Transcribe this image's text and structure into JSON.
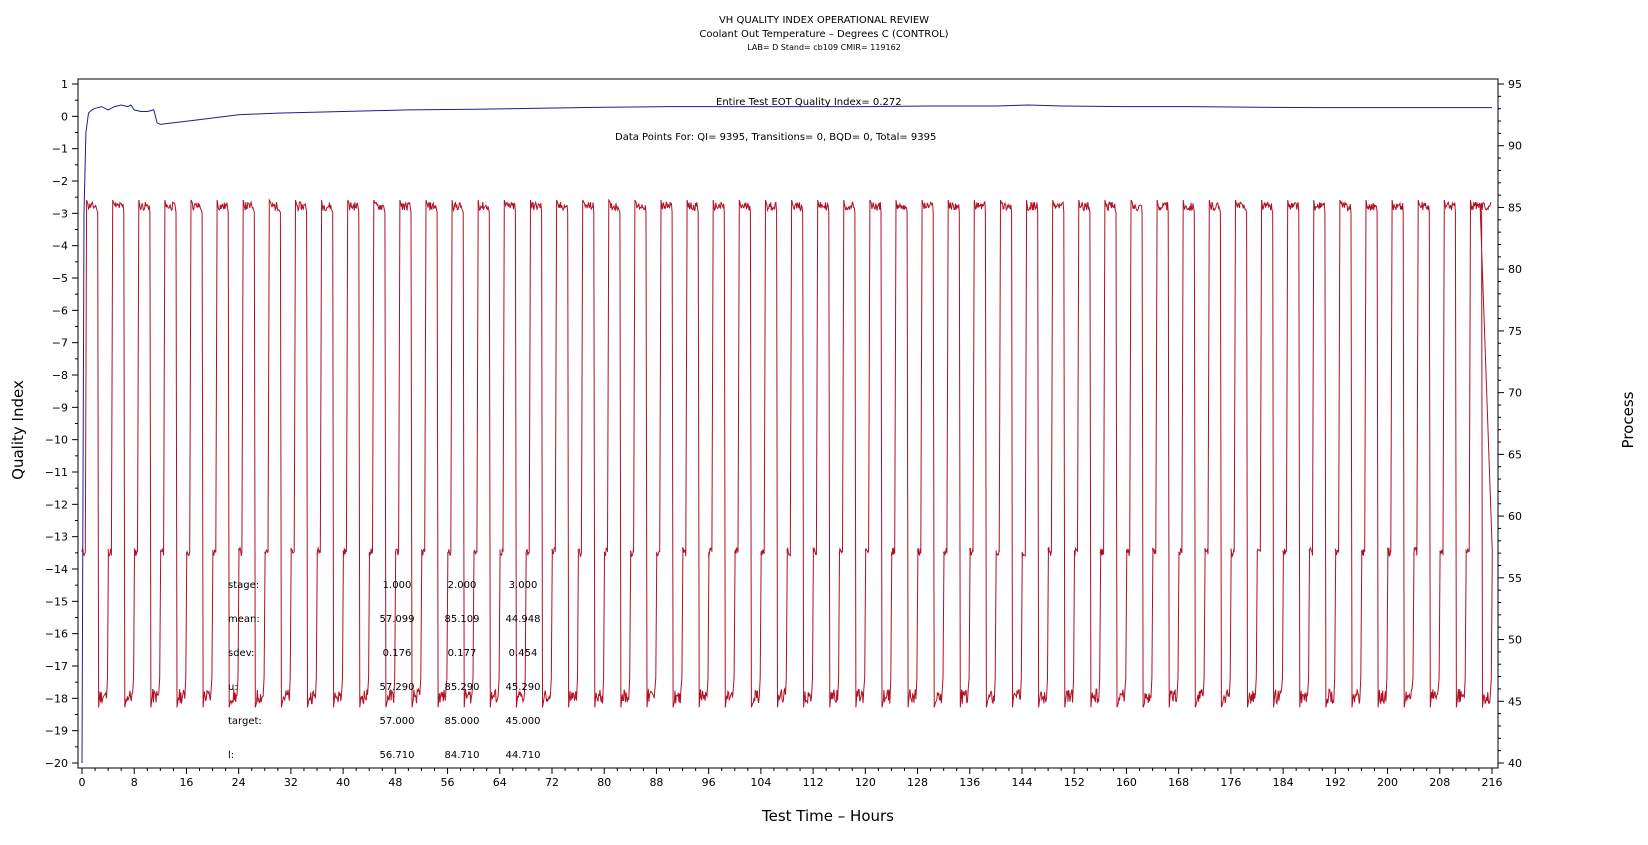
{
  "chart_data": {
    "type": "line",
    "title": "VH QUALITY INDEX OPERATIONAL REVIEW",
    "subtitle": "Coolant Out Temperature – Degrees C (CONTROL)",
    "subtitle2": "LAB= D Stand= cb109 CMIR= 119162",
    "xlabel": "Test Time – Hours",
    "ylabel_left": "Quality Index",
    "ylabel_right": "Process",
    "xlim": [
      0,
      216
    ],
    "ylim_left": [
      -20,
      1
    ],
    "ylim_right": [
      40,
      95
    ],
    "x_ticks": [
      0,
      8,
      16,
      24,
      32,
      40,
      48,
      56,
      64,
      72,
      80,
      88,
      96,
      104,
      112,
      120,
      128,
      136,
      144,
      152,
      160,
      168,
      176,
      184,
      192,
      200,
      208,
      216
    ],
    "y_left_ticks": [
      1,
      0,
      -1,
      -2,
      -3,
      -4,
      -5,
      -6,
      -7,
      -8,
      -9,
      -10,
      -11,
      -12,
      -13,
      -14,
      -15,
      -16,
      -17,
      -18,
      -19,
      -20
    ],
    "y_right_ticks": [
      95,
      90,
      85,
      80,
      75,
      70,
      65,
      60,
      55,
      50,
      45,
      40
    ],
    "annotations": {
      "qi": "Entire Test EOT Quality Index=   0.272",
      "points": "Data Points For: QI=  9395, Transitions=     0, BQD=     0, Total=  9395"
    },
    "stats_table": {
      "rows": [
        {
          "label": "stage:",
          "values": [
            "1.000",
            "2.000",
            "3.000"
          ]
        },
        {
          "label": "mean:",
          "values": [
            "57.099",
            "85.109",
            "44.948"
          ]
        },
        {
          "label": "sdev:",
          "values": [
            "0.176",
            "0.177",
            "0.454"
          ]
        },
        {
          "label": "u:",
          "values": [
            "57.290",
            "85.290",
            "45.290"
          ]
        },
        {
          "label": "target:",
          "values": [
            "57.000",
            "85.000",
            "45.000"
          ]
        },
        {
          "label": "l:",
          "values": [
            "56.710",
            "84.710",
            "44.710"
          ]
        }
      ]
    },
    "series": [
      {
        "axis": "left",
        "color": "#1c1c9c",
        "points": [
          [
            0,
            -20
          ],
          [
            0.3,
            -3
          ],
          [
            0.6,
            -0.5
          ],
          [
            1,
            0.1
          ],
          [
            1.5,
            0.2
          ],
          [
            2,
            0.25
          ],
          [
            3,
            0.3
          ],
          [
            4,
            0.2
          ],
          [
            5,
            0.3
          ],
          [
            6,
            0.35
          ],
          [
            7,
            0.3
          ],
          [
            7.5,
            0.35
          ],
          [
            8,
            0.2
          ],
          [
            9,
            0.15
          ],
          [
            10,
            0.15
          ],
          [
            11,
            0.2
          ],
          [
            11.5,
            -0.2
          ],
          [
            12,
            -0.25
          ],
          [
            14,
            -0.2
          ],
          [
            16,
            -0.15
          ],
          [
            18,
            -0.1
          ],
          [
            20,
            -0.05
          ],
          [
            24,
            0.05
          ],
          [
            30,
            0.1
          ],
          [
            40,
            0.15
          ],
          [
            50,
            0.2
          ],
          [
            60,
            0.22
          ],
          [
            70,
            0.25
          ],
          [
            80,
            0.28
          ],
          [
            90,
            0.3
          ],
          [
            100,
            0.3
          ],
          [
            110,
            0.3
          ],
          [
            120,
            0.3
          ],
          [
            130,
            0.32
          ],
          [
            140,
            0.32
          ],
          [
            145,
            0.35
          ],
          [
            150,
            0.32
          ],
          [
            160,
            0.3
          ],
          [
            170,
            0.3
          ],
          [
            180,
            0.28
          ],
          [
            190,
            0.27
          ],
          [
            200,
            0.27
          ],
          [
            210,
            0.27
          ],
          [
            216,
            0.27
          ]
        ]
      },
      {
        "axis": "right",
        "color": "#b01025",
        "stage_values": [
          57.1,
          85.1,
          44.9
        ],
        "cycle_starts": [
          0.5,
          4.5,
          8.5,
          12.5,
          16.5,
          20.5,
          24.5,
          28.5,
          32.5,
          36.5,
          40.5,
          44.5,
          48.5,
          52.5,
          56.5,
          60.5,
          64.5,
          68.5,
          72.5,
          76.5,
          80.5,
          84.5,
          88.5,
          92.5,
          96.5,
          100.5,
          104.5,
          108.5,
          112.5,
          116.5,
          120.5,
          124.5,
          128.5,
          132.5,
          136.5,
          140.5,
          144.5,
          148.5,
          152.5,
          156.5,
          160.5,
          164.5,
          168.5,
          172.5,
          176.5,
          180.5,
          184.5,
          188.5,
          192.5,
          196.5,
          200.5,
          204.5,
          208.5,
          212.5
        ]
      }
    ],
    "colors": {
      "qi_line": "#1c1c9c",
      "process_line": "#b01025"
    }
  }
}
